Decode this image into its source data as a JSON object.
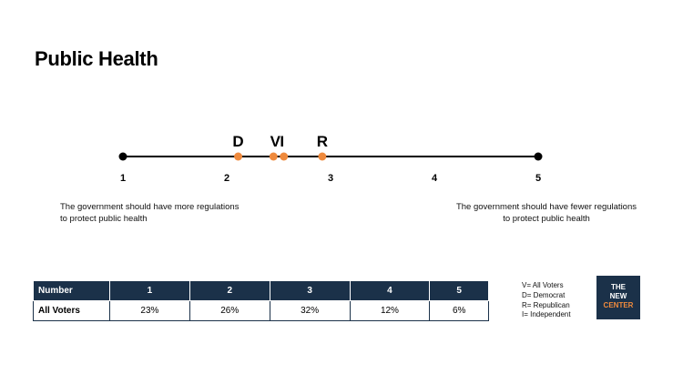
{
  "title": "Public Health",
  "chart_data": {
    "type": "scatter",
    "scale_min": 1,
    "scale_max": 5,
    "ticks": [
      "1",
      "2",
      "3",
      "4",
      "5"
    ],
    "points": [
      {
        "label": "D",
        "value": 2.11
      },
      {
        "label": "V",
        "value": 2.45
      },
      {
        "label": "I",
        "value": 2.55
      },
      {
        "label": "R",
        "value": 2.92
      }
    ],
    "marker_color": "#ef8a3d",
    "line_color": "#000000",
    "left_description": "The government should have more regulations to protect public health",
    "right_description": "The government should have fewer regulations to protect public health"
  },
  "table": {
    "headers": [
      "Number",
      "1",
      "2",
      "3",
      "4",
      "5"
    ],
    "rows": [
      {
        "label": "All Voters",
        "values": [
          "23%",
          "26%",
          "32%",
          "12%",
          "6%"
        ]
      }
    ]
  },
  "legend": [
    "V= All Voters",
    "D= Democrat",
    "R= Republican",
    "I= Independent"
  ],
  "logo": {
    "line1": "THE",
    "line2": "NEW",
    "line3": "CENTER"
  }
}
